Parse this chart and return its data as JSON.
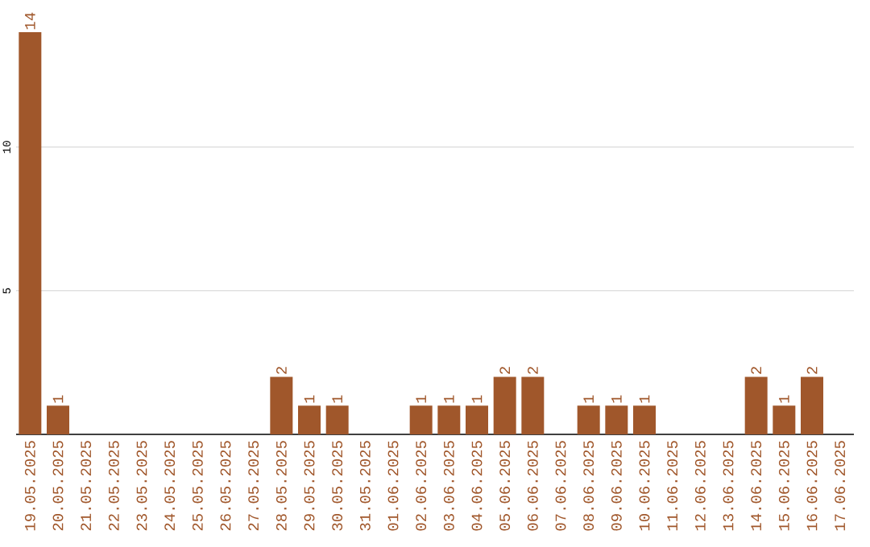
{
  "chart_data": {
    "type": "bar",
    "categories": [
      "19.05.2025",
      "20.05.2025",
      "21.05.2025",
      "22.05.2025",
      "23.05.2025",
      "24.05.2025",
      "25.05.2025",
      "26.05.2025",
      "27.05.2025",
      "28.05.2025",
      "29.05.2025",
      "30.05.2025",
      "31.05.2025",
      "01.06.2025",
      "02.06.2025",
      "03.06.2025",
      "04.06.2025",
      "05.06.2025",
      "06.06.2025",
      "07.06.2025",
      "08.06.2025",
      "09.06.2025",
      "10.06.2025",
      "11.06.2025",
      "12.06.2025",
      "13.06.2025",
      "14.06.2025",
      "15.06.2025",
      "16.06.2025",
      "17.06.2025"
    ],
    "values": [
      14,
      1,
      0,
      0,
      0,
      0,
      0,
      0,
      0,
      2,
      1,
      1,
      0,
      0,
      1,
      1,
      1,
      2,
      2,
      0,
      1,
      1,
      1,
      0,
      0,
      0,
      2,
      1,
      2,
      0
    ],
    "value_labels": [
      "14",
      "1",
      null,
      null,
      null,
      null,
      null,
      null,
      null,
      "2",
      "1",
      "1",
      null,
      null,
      "1",
      "1",
      "1",
      "2",
      "2",
      null,
      "1",
      "1",
      "1",
      null,
      null,
      null,
      "2",
      "1",
      "2",
      null
    ],
    "color": "#a0572b",
    "ylim": [
      0,
      14
    ],
    "yticks": [
      5,
      10
    ],
    "grid": "y"
  }
}
